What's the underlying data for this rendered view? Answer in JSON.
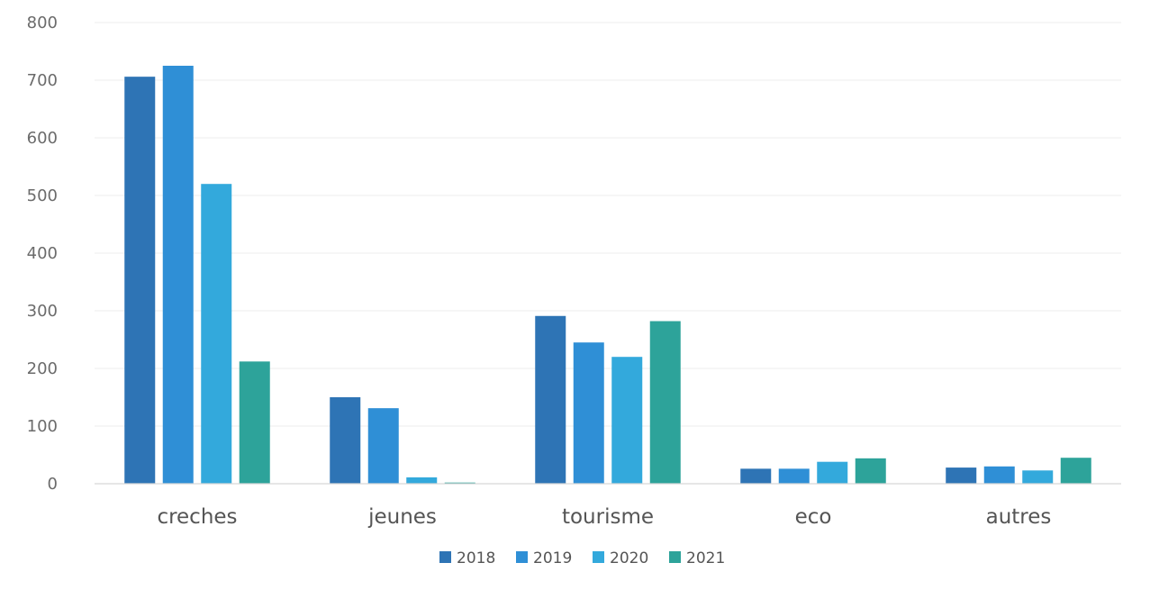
{
  "chart_data": {
    "type": "bar",
    "title": "",
    "xlabel": "",
    "ylabel": "",
    "categories": [
      "creches",
      "jeunes",
      "tourisme",
      "eco",
      "autres"
    ],
    "series": [
      {
        "name": "2018",
        "values": [
          706,
          150,
          291,
          26,
          28
        ]
      },
      {
        "name": "2019",
        "values": [
          725,
          131,
          245,
          26,
          30
        ]
      },
      {
        "name": "2020",
        "values": [
          520,
          11,
          220,
          38,
          23
        ]
      },
      {
        "name": "2021",
        "values": [
          212,
          2,
          282,
          44,
          45
        ]
      }
    ],
    "ylim": [
      0,
      800
    ],
    "yticks": [
      "0",
      "100",
      "200",
      "300",
      "400",
      "500",
      "600",
      "700",
      "800"
    ],
    "grid": true,
    "legend_position": "bottom",
    "colors": [
      "#2e74b5",
      "#2f8fd6",
      "#33a9dc",
      "#2da39a"
    ]
  }
}
